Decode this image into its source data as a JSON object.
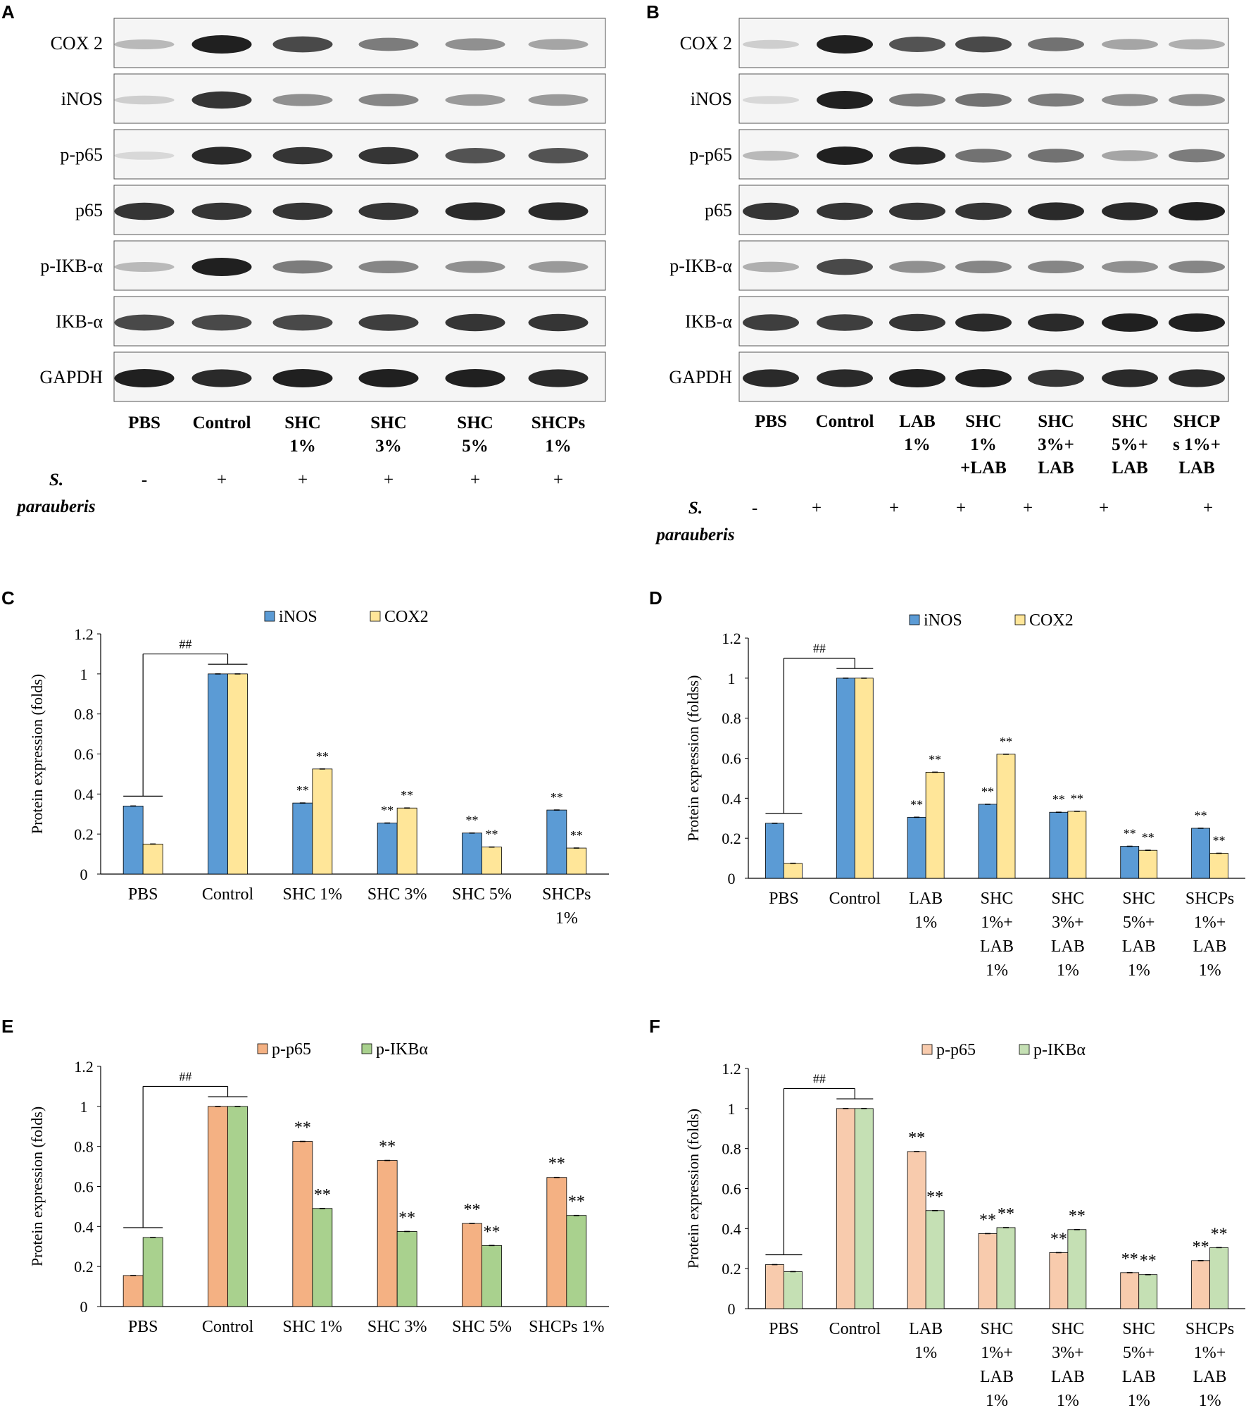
{
  "panels": {
    "A": {
      "letter": "A",
      "rows": [
        "COX 2",
        "iNOS",
        "p-p65",
        "p65",
        "p-IKB-α",
        "IKB-α",
        "GAPDH"
      ],
      "lanes": [
        [
          "PBS"
        ],
        [
          "Control"
        ],
        [
          "SHC",
          "1%"
        ],
        [
          "SHC",
          "3%"
        ],
        [
          "SHC",
          "5%"
        ],
        [
          "SHCPs",
          "1%"
        ]
      ],
      "treatment_label": [
        "S.",
        "parauberis"
      ],
      "treatment": [
        "-",
        "+",
        "+",
        "+",
        "+",
        "+"
      ]
    },
    "B": {
      "letter": "B",
      "rows": [
        "COX 2",
        "iNOS",
        "p-p65",
        "p65",
        "p-IKB-α",
        "IKB-α",
        "GAPDH"
      ],
      "lanes": [
        [
          "PBS"
        ],
        [
          "Control"
        ],
        [
          "LAB",
          "1%"
        ],
        [
          "SHC",
          "1%",
          "+LAB"
        ],
        [
          "SHC",
          "3%+",
          "LAB"
        ],
        [
          "SHC",
          "5%+",
          "LAB"
        ],
        [
          "SHCP",
          "s 1%+",
          "LAB"
        ]
      ],
      "treatment_label": [
        "S.",
        "parauberis"
      ],
      "treatment": [
        "-",
        "+",
        "+",
        "+",
        "+",
        "+",
        "+"
      ]
    }
  },
  "chart_data": [
    {
      "panel": "C",
      "type": "bar",
      "ylabel": "Protein expression (folds)",
      "ylim": [
        0,
        1.2
      ],
      "yticks": [
        "0",
        "0.2",
        "0.4",
        "0.6",
        "0.8",
        "1",
        "1.2"
      ],
      "categories": [
        [
          "PBS"
        ],
        [
          "Control"
        ],
        [
          "SHC 1%"
        ],
        [
          "SHC 3%"
        ],
        [
          "SHC 5%"
        ],
        [
          "SHCPs",
          "1%"
        ]
      ],
      "series": [
        {
          "name": "iNOS",
          "color": "#5b9bd5",
          "values": [
            0.34,
            1.0,
            0.355,
            0.255,
            0.205,
            0.32
          ],
          "marks": [
            "",
            "",
            "**",
            "**",
            "**",
            "**"
          ]
        },
        {
          "name": "COX2",
          "color": "#ffe699",
          "values": [
            0.15,
            1.0,
            0.525,
            0.33,
            0.135,
            0.13
          ],
          "marks": [
            "",
            "",
            "**",
            "**",
            "**",
            "**"
          ]
        }
      ],
      "sig_label": "##",
      "legend": "top"
    },
    {
      "panel": "D",
      "type": "bar",
      "ylabel": "Protein expression (foldss)",
      "ylim": [
        0,
        1.2
      ],
      "yticks": [
        "0",
        "0.2",
        "0.4",
        "0.6",
        "0.8",
        "1",
        "1.2"
      ],
      "categories": [
        [
          "PBS"
        ],
        [
          "Control"
        ],
        [
          "LAB",
          "1%"
        ],
        [
          "SHC",
          "1%+",
          "LAB",
          "1%"
        ],
        [
          "SHC",
          "3%+",
          "LAB",
          "1%"
        ],
        [
          "SHC",
          "5%+",
          "LAB",
          "1%"
        ],
        [
          "SHCPs",
          "1%+",
          "LAB",
          "1%"
        ]
      ],
      "series": [
        {
          "name": "iNOS",
          "color": "#5b9bd5",
          "values": [
            0.275,
            1.0,
            0.305,
            0.37,
            0.33,
            0.16,
            0.25
          ],
          "marks": [
            "",
            "",
            "**",
            "**",
            "**",
            "**",
            "**"
          ]
        },
        {
          "name": "COX2",
          "color": "#ffe699",
          "values": [
            0.075,
            1.0,
            0.53,
            0.62,
            0.335,
            0.14,
            0.125
          ],
          "marks": [
            "",
            "",
            "**",
            "**",
            "**",
            "**",
            "**"
          ]
        }
      ],
      "sig_label": "##",
      "legend": "top"
    },
    {
      "panel": "E",
      "type": "bar",
      "ylabel": "Protein expression (folds)",
      "ylim": [
        0,
        1.2
      ],
      "yticks": [
        "0",
        "0.2",
        "0.4",
        "0.6",
        "0.8",
        "1",
        "1.2"
      ],
      "categories": [
        [
          "PBS"
        ],
        [
          "Control"
        ],
        [
          "SHC 1%"
        ],
        [
          "SHC 3%"
        ],
        [
          "SHC 5%"
        ],
        [
          "SHCPs 1%"
        ]
      ],
      "series": [
        {
          "name": "p-p65",
          "color": "#f4b183",
          "values": [
            0.155,
            1.0,
            0.825,
            0.73,
            0.415,
            0.645
          ],
          "marks": [
            "",
            "",
            "**",
            "**",
            "**",
            "**"
          ]
        },
        {
          "name": "p-IKBα",
          "color": "#a9d18e",
          "values": [
            0.345,
            1.0,
            0.49,
            0.375,
            0.305,
            0.455
          ],
          "marks": [
            "",
            "",
            "**",
            "**",
            "**",
            "**"
          ]
        }
      ],
      "sig_label": "##",
      "legend": "top"
    },
    {
      "panel": "F",
      "type": "bar",
      "ylabel": "Protein expression (folds)",
      "ylim": [
        0,
        1.2
      ],
      "yticks": [
        "0",
        "0.2",
        "0.4",
        "0.6",
        "0.8",
        "1",
        "1.2"
      ],
      "categories": [
        [
          "PBS"
        ],
        [
          "Control"
        ],
        [
          "LAB",
          "1%"
        ],
        [
          "SHC",
          "1%+",
          "LAB",
          "1%"
        ],
        [
          "SHC",
          "3%+",
          "LAB",
          "1%"
        ],
        [
          "SHC",
          "5%+",
          "LAB",
          "1%"
        ],
        [
          "SHCPs",
          "1%+",
          "LAB",
          "1%"
        ]
      ],
      "series": [
        {
          "name": "p-p65",
          "color": "#f8cbad",
          "values": [
            0.22,
            1.0,
            0.785,
            0.375,
            0.28,
            0.18,
            0.24
          ],
          "marks": [
            "",
            "",
            "**",
            "**",
            "**",
            "**",
            "**"
          ]
        },
        {
          "name": "p-IKBα",
          "color": "#c5e0b4",
          "values": [
            0.185,
            1.0,
            0.49,
            0.405,
            0.395,
            0.17,
            0.305
          ],
          "marks": [
            "",
            "",
            "**",
            "**",
            "**",
            "**",
            "**"
          ]
        }
      ],
      "sig_label": "##",
      "legend": "top"
    }
  ]
}
